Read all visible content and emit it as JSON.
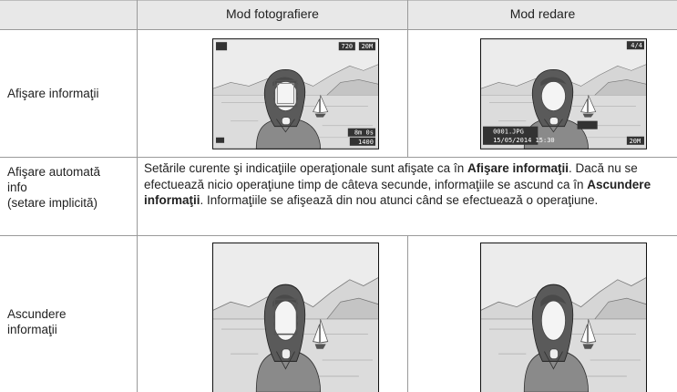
{
  "table": {
    "columns": [
      "Mod fotografiere",
      "Mod redare"
    ],
    "rows": [
      {
        "label": "Afişare informaţii",
        "screens": {
          "shooting": {
            "resolution": "720",
            "size": "20M",
            "time": "8m 0s",
            "shots": "1400"
          },
          "playback": {
            "counter": "4/4",
            "file": "0001.JPG",
            "date": "15/05/2014 15:30",
            "size": "20M"
          }
        }
      },
      {
        "label": "Afişare automată info",
        "note": "(setare implicită)",
        "description": [
          {
            "text": "Setările curente şi indicaţiile operaţionale sunt afişate ca în ",
            "bold": false
          },
          {
            "text": "Afişare informaţii",
            "bold": true
          },
          {
            "text": ". Dacă nu se efectuează nicio operaţiune timp de câteva secunde, informaţiile se ascund ca în ",
            "bold": false
          },
          {
            "text": "Ascundere informaţii",
            "bold": true
          },
          {
            "text": ". Informaţiile se afişează din nou atunci când se efectuează o operaţiune.",
            "bold": false
          }
        ]
      },
      {
        "label": "Ascundere informaţii"
      }
    ]
  }
}
